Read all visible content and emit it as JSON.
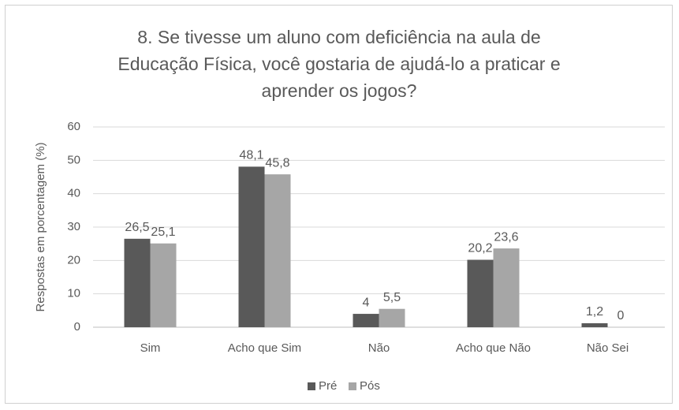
{
  "chart_data": {
    "type": "bar",
    "title": "8. Se tivesse um aluno com deficiência na aula de Educação Física, você gostaria de ajudá-lo a praticar e aprender os jogos?",
    "ylabel": "Respostas em porcentagem (%)",
    "categories": [
      "Sim",
      "Acho que Sim",
      "Não",
      "Acho que Não",
      "Não Sei"
    ],
    "series": [
      {
        "name": "Pré",
        "color": "#595959",
        "values": [
          26.5,
          48.1,
          4,
          20.2,
          1.2
        ],
        "value_labels": [
          "26,5",
          "48,1",
          "4",
          "20,2",
          "1,2"
        ]
      },
      {
        "name": "Pós",
        "color": "#a6a6a6",
        "values": [
          25.1,
          45.8,
          5.5,
          23.6,
          0
        ],
        "value_labels": [
          "25,1",
          "45,8",
          "5,5",
          "23,6",
          "0"
        ]
      }
    ],
    "ylim": [
      0,
      60
    ],
    "yticks": [
      0,
      10,
      20,
      30,
      40,
      50,
      60
    ],
    "grid": true,
    "legend": "bottom"
  }
}
